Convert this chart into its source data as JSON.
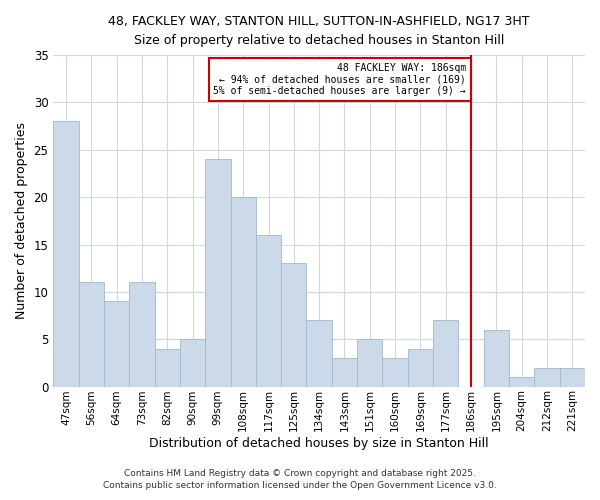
{
  "title1": "48, FACKLEY WAY, STANTON HILL, SUTTON-IN-ASHFIELD, NG17 3HT",
  "title2": "Size of property relative to detached houses in Stanton Hill",
  "xlabel": "Distribution of detached houses by size in Stanton Hill",
  "ylabel": "Number of detached properties",
  "categories": [
    "47sqm",
    "56sqm",
    "64sqm",
    "73sqm",
    "82sqm",
    "90sqm",
    "99sqm",
    "108sqm",
    "117sqm",
    "125sqm",
    "134sqm",
    "143sqm",
    "151sqm",
    "160sqm",
    "169sqm",
    "177sqm",
    "186sqm",
    "195sqm",
    "204sqm",
    "212sqm",
    "221sqm"
  ],
  "values": [
    28,
    11,
    9,
    11,
    4,
    5,
    24,
    20,
    16,
    13,
    7,
    3,
    5,
    3,
    4,
    7,
    0,
    6,
    1,
    2,
    2
  ],
  "bar_color": "#ccd9e8",
  "bar_edge_color": "#a0b8cc",
  "vline_x_index": 16,
  "annotation_title": "48 FACKLEY WAY: 186sqm",
  "annotation_line2": "← 94% of detached houses are smaller (169)",
  "annotation_line3": "5% of semi-detached houses are larger (9) →",
  "annotation_box_color": "#cc0000",
  "ylim": [
    0,
    35
  ],
  "yticks": [
    0,
    5,
    10,
    15,
    20,
    25,
    30,
    35
  ],
  "bg_color": "#ffffff",
  "grid_color": "#d0d8e0",
  "footer1": "Contains HM Land Registry data © Crown copyright and database right 2025.",
  "footer2": "Contains public sector information licensed under the Open Government Licence v3.0."
}
